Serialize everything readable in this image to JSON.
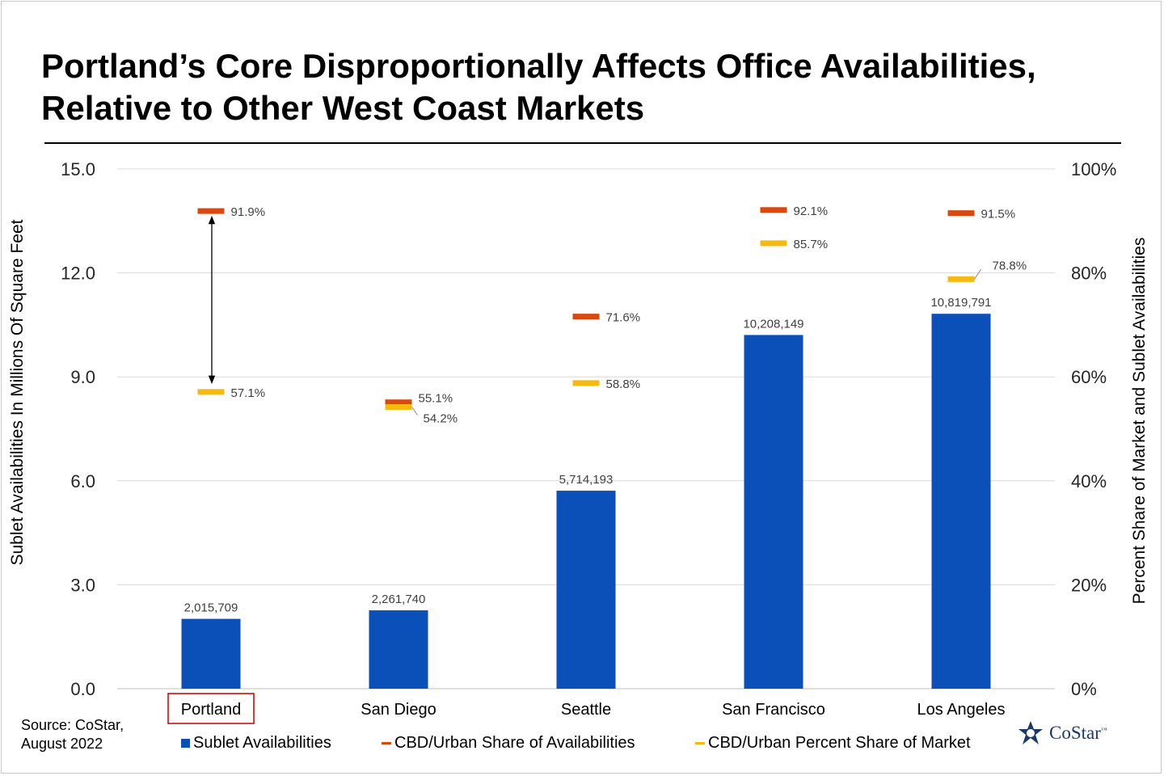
{
  "title": "Portland’s Core Disproportionally Affects Office Availabilities, Relative to Other West Coast Markets",
  "source": "Source: CoStar,\nAugust 2022",
  "logo_text": "CoStar",
  "logo_tm": "™",
  "colors": {
    "bar": "#0b4fb8",
    "availability_share": "#d9480f",
    "market_share": "#f5b90f",
    "grid": "#d9d9d9",
    "highlight_box": "#c00000"
  },
  "chart_data": {
    "type": "bar",
    "categories": [
      "Portland",
      "San Diego",
      "Seattle",
      "San Francisco",
      "Los Angeles"
    ],
    "highlighted_category": "Portland",
    "series": [
      {
        "name": "Sublet Availabilities",
        "axis": "left",
        "marker": "bar",
        "values": [
          2015709,
          2261740,
          5714193,
          10208149,
          10819791
        ],
        "labels": [
          "2,015,709",
          "2,261,740",
          "5,714,193",
          "10,208,149",
          "10,819,791"
        ]
      },
      {
        "name": "CBD/Urban Share of Availabilities",
        "axis": "right",
        "marker": "dash",
        "values": [
          91.9,
          55.1,
          71.6,
          92.1,
          91.5
        ],
        "labels": [
          "91.9%",
          "55.1%",
          "71.6%",
          "92.1%",
          "91.5%"
        ]
      },
      {
        "name": "CBD/Urban Percent Share of Market",
        "axis": "right",
        "marker": "dash",
        "values": [
          57.1,
          54.2,
          58.8,
          85.7,
          78.8
        ],
        "labels": [
          "57.1%",
          "54.2%",
          "58.8%",
          "85.7%",
          "78.8%"
        ]
      }
    ],
    "ylabel": "Sublet Availabilities In Millions Of Square Feet",
    "ylim": [
      0,
      15
    ],
    "yticks": [
      "0.0",
      "3.0",
      "6.0",
      "9.0",
      "12.0",
      "15.0"
    ],
    "y2label": "Percent Share of Market and Sublet Availabilities",
    "y2lim": [
      0,
      100
    ],
    "y2ticks": [
      "0%",
      "20%",
      "40%",
      "60%",
      "80%",
      "100%"
    ],
    "grid": true,
    "legend_position": "bottom",
    "annotation": "double-headed arrow between Portland's two share markers"
  }
}
